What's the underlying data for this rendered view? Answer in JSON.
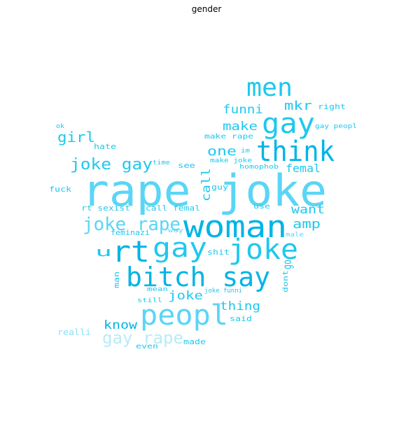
{
  "title": "gender",
  "palette": {
    "c1": "#00b4e6",
    "c2": "#1ec8ee",
    "c3": "#5ad5f6",
    "c4": "#8fe0f5",
    "c5": "#b8ebf6"
  },
  "words": [
    {
      "text": "rape joke",
      "color": "c3"
    },
    {
      "text": "woman",
      "color": "c1"
    },
    {
      "text": "joke",
      "color": "c2"
    },
    {
      "text": "rt",
      "color": "c1"
    },
    {
      "text": "gay",
      "color": "c2"
    },
    {
      "text": "bitch say",
      "color": "c1"
    },
    {
      "text": "peopl",
      "color": "c3"
    },
    {
      "text": "think",
      "color": "c1"
    },
    {
      "text": "gay",
      "color": "c2"
    },
    {
      "text": "men",
      "color": "c2"
    },
    {
      "text": "joke gay",
      "color": "c2"
    },
    {
      "text": "joke rape",
      "color": "c3"
    },
    {
      "text": "gay rape",
      "color": "c5"
    },
    {
      "text": "girl",
      "color": "c2"
    },
    {
      "text": "make",
      "color": "c2"
    },
    {
      "text": "one",
      "color": "c2"
    },
    {
      "text": "mkr",
      "color": "c2"
    },
    {
      "text": "funni",
      "color": "c2"
    },
    {
      "text": "femal",
      "color": "c2"
    },
    {
      "text": "want",
      "color": "c2"
    },
    {
      "text": "amp",
      "color": "c2"
    },
    {
      "text": "call",
      "color": "c2"
    },
    {
      "text": "u",
      "color": "c2"
    },
    {
      "text": "go",
      "color": "c2"
    },
    {
      "text": "joke",
      "color": "c2"
    },
    {
      "text": "thing",
      "color": "c2"
    },
    {
      "text": "know",
      "color": "c1"
    },
    {
      "text": "right",
      "color": "c2"
    },
    {
      "text": "gay peopl",
      "color": "c2"
    },
    {
      "text": "ok",
      "color": "c2"
    },
    {
      "text": "hate",
      "color": "c2"
    },
    {
      "text": "make rape",
      "color": "c2"
    },
    {
      "text": "im",
      "color": "c2"
    },
    {
      "text": "make joke",
      "color": "c2"
    },
    {
      "text": "homophob",
      "color": "c2"
    },
    {
      "text": "time",
      "color": "c2"
    },
    {
      "text": "see",
      "color": "c2"
    },
    {
      "text": "guy",
      "color": "c2"
    },
    {
      "text": "fuck",
      "color": "c2"
    },
    {
      "text": "rt sexist",
      "color": "c2"
    },
    {
      "text": "call femal",
      "color": "c2"
    },
    {
      "text": "use",
      "color": "c2"
    },
    {
      "text": "way",
      "color": "c3"
    },
    {
      "text": "male",
      "color": "c3"
    },
    {
      "text": "feminazi",
      "color": "c2"
    },
    {
      "text": "shit",
      "color": "c2"
    },
    {
      "text": "man",
      "color": "c2"
    },
    {
      "text": "dont",
      "color": "c2"
    },
    {
      "text": "mean",
      "color": "c2"
    },
    {
      "text": "joke funni",
      "color": "c2"
    },
    {
      "text": "still",
      "color": "c2"
    },
    {
      "text": "said",
      "color": "c2"
    },
    {
      "text": "realli",
      "color": "c4"
    },
    {
      "text": "made",
      "color": "c2"
    },
    {
      "text": "even",
      "color": "c2"
    }
  ]
}
